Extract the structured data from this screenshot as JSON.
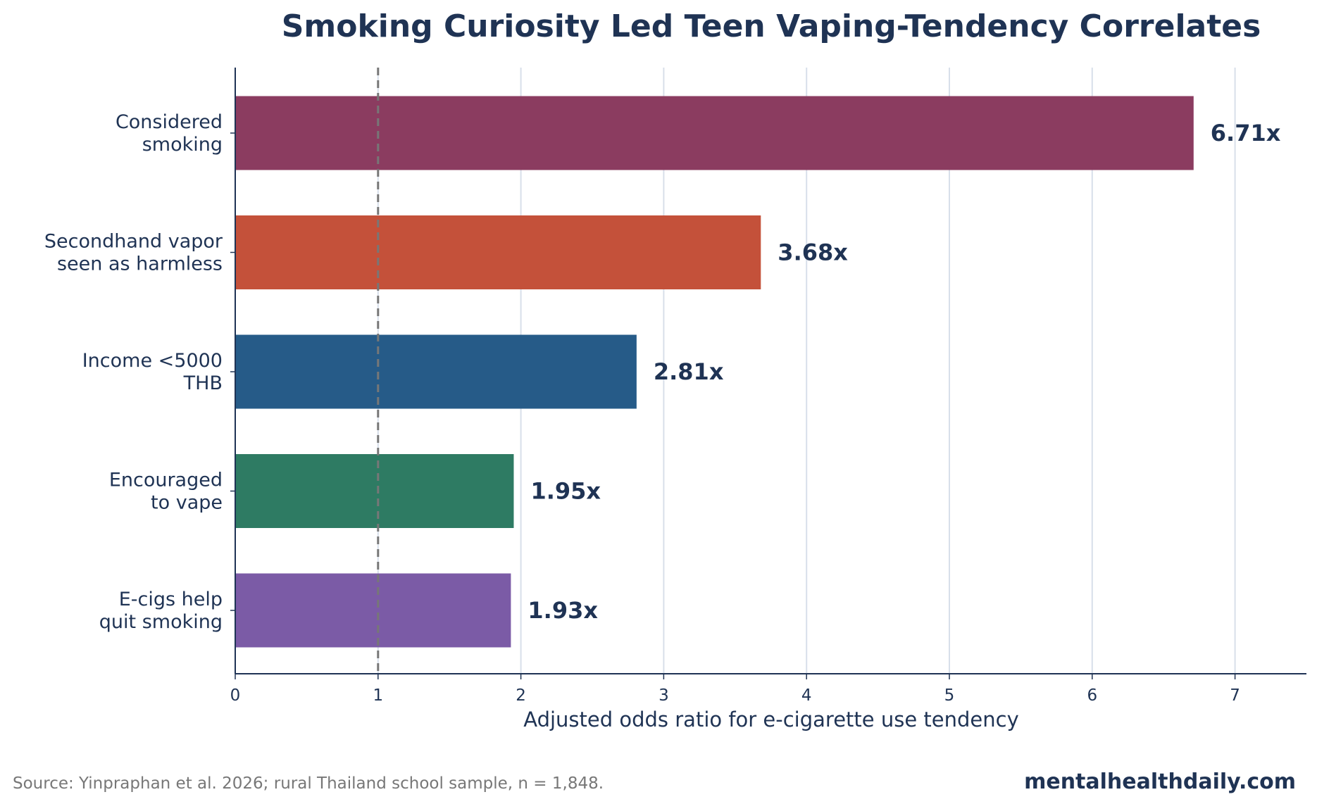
{
  "chart_data": {
    "type": "bar",
    "orientation": "horizontal",
    "title": "Smoking Curiosity Led Teen Vaping-Tendency Correlates",
    "xlabel": "Adjusted odds ratio for e-cigarette use tendency",
    "ylabel": "",
    "categories": [
      [
        "Considered",
        "smoking"
      ],
      [
        "Secondhand vapor",
        "seen as harmless"
      ],
      [
        "Income <5000",
        "THB"
      ],
      [
        "Encouraged",
        "to vape"
      ],
      [
        "E-cigs help",
        "quit smoking"
      ]
    ],
    "values": [
      6.71,
      3.68,
      2.81,
      1.95,
      1.93
    ],
    "value_labels": [
      "6.71x",
      "3.68x",
      "2.81x",
      "1.95x",
      "1.93x"
    ],
    "colors": [
      "#8b3c60",
      "#c4513a",
      "#265b88",
      "#2e7b63",
      "#7b5ba6"
    ],
    "xlim": [
      0,
      7.5
    ],
    "xticks": [
      0,
      1,
      2,
      3,
      4,
      5,
      6,
      7
    ],
    "reference_line": 1,
    "grid": "vertical"
  },
  "footer": {
    "source": "Source: Yinpraphan et al. 2026; rural Thailand school sample, n = 1,848.",
    "brand": "mentalhealthdaily.com"
  }
}
